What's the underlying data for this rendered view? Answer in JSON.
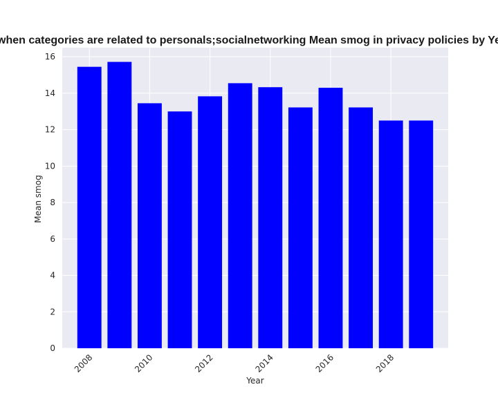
{
  "chart_data": {
    "type": "bar",
    "title": "when categories are related to personals;socialnetworking Mean smog in privacy policies by Ye",
    "xlabel": "Year",
    "ylabel": "Mean smog",
    "categories": [
      2008,
      2009,
      2010,
      2011,
      2012,
      2013,
      2014,
      2015,
      2016,
      2017,
      2018,
      2019
    ],
    "values": [
      15.45,
      15.72,
      13.45,
      13.0,
      13.83,
      14.55,
      14.33,
      13.22,
      14.3,
      13.22,
      12.5,
      12.5
    ],
    "xtick_labels": [
      "2008",
      "2010",
      "2012",
      "2014",
      "2016",
      "2018"
    ],
    "xtick_values": [
      2008,
      2010,
      2012,
      2014,
      2016,
      2018
    ],
    "ytick_labels": [
      "0",
      "2",
      "4",
      "6",
      "8",
      "10",
      "12",
      "14",
      "16"
    ],
    "ytick_values": [
      0,
      2,
      4,
      6,
      8,
      10,
      12,
      14,
      16
    ],
    "ylim": [
      0,
      16.5
    ],
    "xlim": [
      2007.1,
      2019.9
    ],
    "bar_color": "#0000ff",
    "plot_background": "#eaeaf2",
    "grid_color": "#ffffff",
    "grid": true
  }
}
